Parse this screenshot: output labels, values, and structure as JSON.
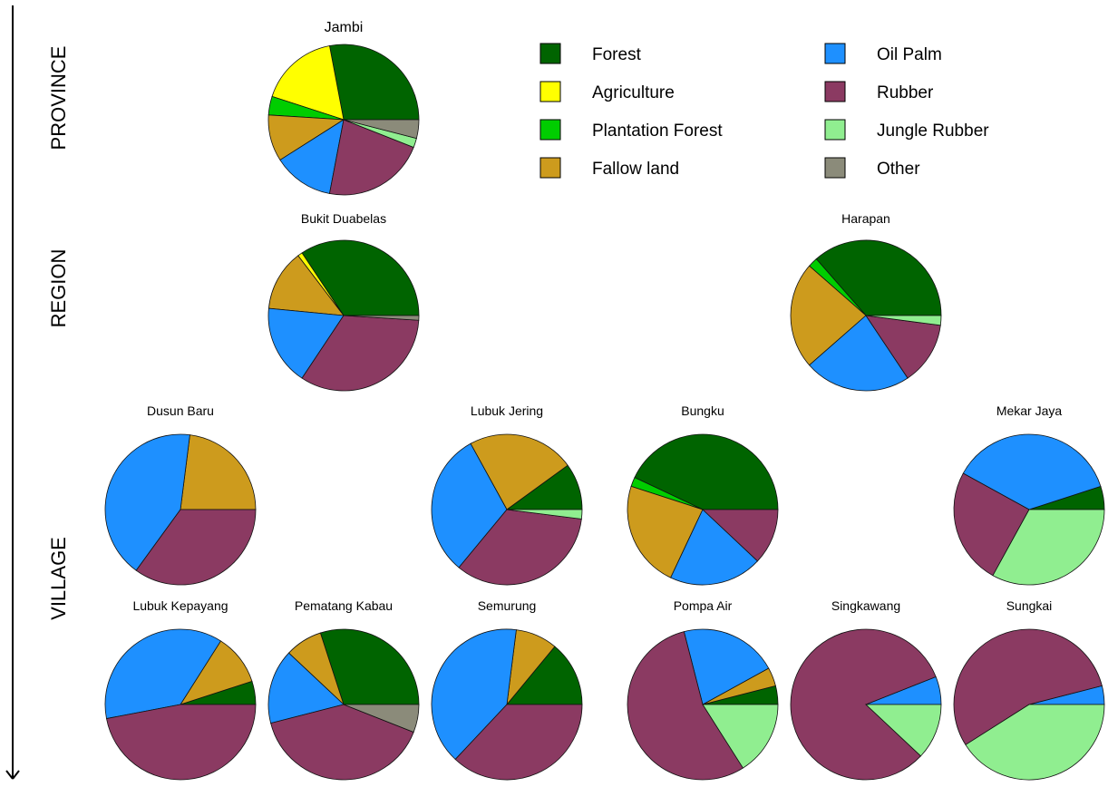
{
  "levels": [
    "PROVINCE",
    "REGION",
    "VILLAGE"
  ],
  "legend": [
    {
      "key": "forest",
      "label": "Forest",
      "color": "#006400"
    },
    {
      "key": "agriculture",
      "label": "Agriculture",
      "color": "#FFFF00"
    },
    {
      "key": "plantation",
      "label": "Plantation Forest",
      "color": "#00CD00"
    },
    {
      "key": "fallow",
      "label": "Fallow land",
      "color": "#CD9B1D"
    },
    {
      "key": "oilpalm",
      "label": "Oil Palm",
      "color": "#1E90FF"
    },
    {
      "key": "rubber",
      "label": "Rubber",
      "color": "#8B3A62"
    },
    {
      "key": "jungle",
      "label": "Jungle Rubber",
      "color": "#90EE90"
    },
    {
      "key": "other",
      "label": "Other",
      "color": "#8B8B7A"
    }
  ],
  "chart_data": {
    "type": "pie",
    "categories": [
      "Forest",
      "Agriculture",
      "Plantation Forest",
      "Fallow land",
      "Oil Palm",
      "Rubber",
      "Jungle Rubber",
      "Other"
    ],
    "pies": [
      {
        "name": "Jambi",
        "level": "PROVINCE",
        "values": [
          28,
          17,
          4,
          10,
          13,
          22,
          2,
          4
        ]
      },
      {
        "name": "Bukit Duabelas",
        "level": "REGION",
        "values": [
          34,
          1,
          0,
          13,
          17,
          33,
          0,
          1
        ]
      },
      {
        "name": "Harapan",
        "level": "REGION",
        "values": [
          35,
          0,
          2,
          22,
          22,
          13,
          2,
          0
        ]
      },
      {
        "name": "Dusun Baru",
        "level": "VILLAGE",
        "values": [
          0,
          0,
          0,
          23,
          42,
          35,
          0,
          0
        ]
      },
      {
        "name": "Lubuk Jering",
        "level": "VILLAGE",
        "values": [
          10,
          0,
          0,
          23,
          31,
          34,
          2,
          0
        ]
      },
      {
        "name": "Bungku",
        "level": "VILLAGE",
        "values": [
          43,
          0,
          2,
          23,
          20,
          12,
          0,
          0
        ]
      },
      {
        "name": "Mekar Jaya",
        "level": "VILLAGE",
        "values": [
          5,
          0,
          0,
          0,
          37,
          25,
          33,
          0
        ]
      },
      {
        "name": "Lubuk Kepayang",
        "level": "VILLAGE",
        "values": [
          5,
          0,
          0,
          11,
          37,
          47,
          0,
          0
        ]
      },
      {
        "name": "Pematang Kabau",
        "level": "VILLAGE",
        "values": [
          30,
          0,
          0,
          8,
          16,
          40,
          0,
          6
        ]
      },
      {
        "name": "Semurung",
        "level": "VILLAGE",
        "values": [
          14,
          0,
          0,
          9,
          40,
          37,
          0,
          0
        ]
      },
      {
        "name": "Pompa Air",
        "level": "VILLAGE",
        "values": [
          4,
          0,
          0,
          4,
          21,
          55,
          16,
          0
        ]
      },
      {
        "name": "Singkawang",
        "level": "VILLAGE",
        "values": [
          0,
          0,
          0,
          0,
          6,
          82,
          12,
          0
        ]
      },
      {
        "name": "Sungkai",
        "level": "VILLAGE",
        "values": [
          0,
          0,
          0,
          0,
          4,
          55,
          41,
          0
        ]
      }
    ]
  }
}
